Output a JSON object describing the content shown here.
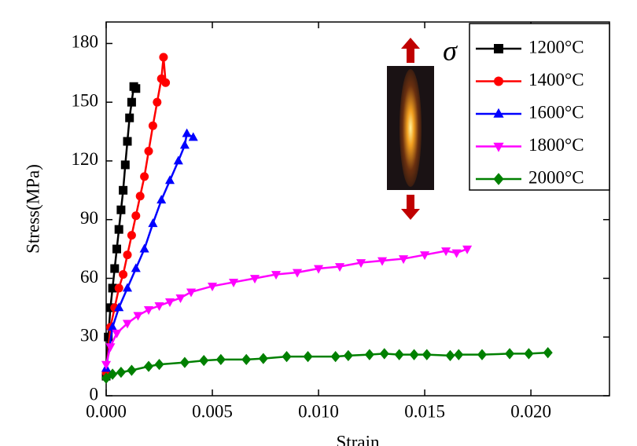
{
  "chart_data": {
    "type": "line",
    "xlabel": "Strain",
    "ylabel": "Stress(MPa)",
    "annotation": "σ",
    "xlim": [
      0,
      0.0237
    ],
    "ylim": [
      0,
      191
    ],
    "xticks": [
      {
        "value": 0,
        "label": "0.000"
      },
      0.005,
      {
        "value": 0.01,
        "label": "0.010"
      },
      0.015,
      {
        "value": 0.02,
        "label": "0.020"
      }
    ],
    "yticks": [
      0,
      30,
      60,
      90,
      120,
      150,
      180
    ],
    "legend": "upper right",
    "series": [
      {
        "name": "1200°C",
        "color": "#000000",
        "marker": "square",
        "x": [
          0,
          0.0001,
          0.0002,
          0.0003,
          0.0004,
          0.0005,
          0.0006,
          0.0007,
          0.0008,
          0.0009,
          0.001,
          0.0011,
          0.0012,
          0.0013,
          0.0014
        ],
        "values": [
          10,
          30,
          45,
          55,
          65,
          75,
          85,
          95,
          105,
          118,
          130,
          142,
          150,
          158,
          157
        ]
      },
      {
        "name": "1400°C",
        "color": "#ff0000",
        "marker": "circle",
        "x": [
          0,
          0.0002,
          0.0004,
          0.0006,
          0.0008,
          0.001,
          0.0012,
          0.0014,
          0.0016,
          0.0018,
          0.002,
          0.0022,
          0.0024,
          0.0026,
          0.0027,
          0.0028
        ],
        "values": [
          12,
          35,
          45,
          55,
          62,
          72,
          82,
          92,
          102,
          112,
          125,
          138,
          150,
          162,
          173,
          160
        ]
      },
      {
        "name": "1600°C",
        "color": "#0000ff",
        "marker": "triangle-up",
        "x": [
          0,
          0.0003,
          0.0006,
          0.001,
          0.0014,
          0.0018,
          0.0022,
          0.0026,
          0.003,
          0.0034,
          0.0037,
          0.0038,
          0.0041
        ],
        "values": [
          14,
          35,
          45,
          55,
          65,
          75,
          88,
          100,
          110,
          120,
          128,
          134,
          132
        ]
      },
      {
        "name": "1800°C",
        "color": "#ff00ff",
        "marker": "triangle-down",
        "x": [
          0,
          0.0002,
          0.0005,
          0.001,
          0.0015,
          0.002,
          0.0025,
          0.003,
          0.0035,
          0.004,
          0.005,
          0.006,
          0.007,
          0.008,
          0.009,
          0.01,
          0.011,
          0.012,
          0.013,
          0.014,
          0.015,
          0.016,
          0.0165,
          0.017
        ],
        "values": [
          16,
          25,
          32,
          37,
          41,
          44,
          46,
          48,
          50,
          53,
          56,
          58,
          60,
          62,
          63,
          65,
          66,
          68,
          69,
          70,
          72,
          74,
          73,
          75
        ]
      },
      {
        "name": "2000°C",
        "color": "#008000",
        "marker": "diamond",
        "x": [
          0,
          0.0003,
          0.0007,
          0.0012,
          0.002,
          0.0025,
          0.0037,
          0.0046,
          0.0054,
          0.0066,
          0.0074,
          0.0085,
          0.0095,
          0.0108,
          0.0114,
          0.0124,
          0.0131,
          0.0138,
          0.0145,
          0.0151,
          0.0162,
          0.0166,
          0.0177,
          0.019,
          0.0199,
          0.0208
        ],
        "values": [
          9,
          11,
          12,
          13,
          15,
          16,
          17,
          18,
          18.5,
          18.5,
          19,
          20,
          20,
          20,
          20.5,
          21,
          21.5,
          21,
          21,
          21,
          20.5,
          21,
          21,
          21.5,
          21.5,
          22
        ]
      }
    ]
  }
}
